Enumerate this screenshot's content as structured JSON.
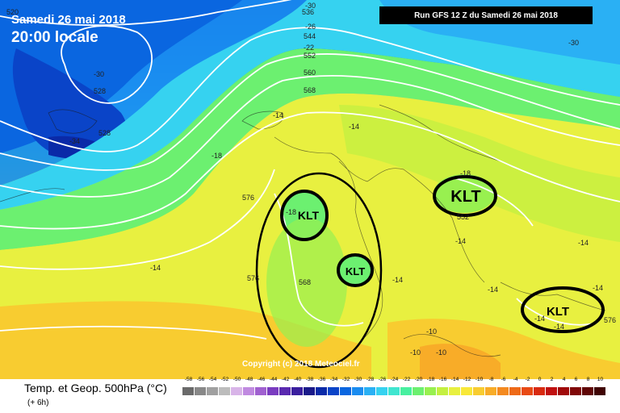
{
  "header": {
    "date": "Samedi 26 mai 2018",
    "local_time": "20:00 locale",
    "run_label": "Run GFS 12 Z du Samedi 26 mai 2018"
  },
  "footer": {
    "title": "Temp. et Geop. 500hPa (°C)",
    "step": "(+ 6h)"
  },
  "copyright": "Copyright (c) 2018 Meteociel.fr",
  "legend": {
    "values": [
      "-58",
      "-56",
      "-54",
      "-52",
      "-50",
      "-48",
      "-46",
      "-44",
      "-42",
      "-40",
      "-38",
      "-36",
      "-34",
      "-32",
      "-30",
      "-28",
      "-26",
      "-24",
      "-22",
      "-20",
      "-18",
      "-16",
      "-14",
      "-12",
      "-10",
      "-8",
      "-6",
      "-4",
      "-2",
      "0",
      "2",
      "4",
      "6",
      "8",
      "10"
    ],
    "colors": [
      "#6a6a6a",
      "#888888",
      "#a0a0a0",
      "#bcbcbc",
      "#d8b4e8",
      "#c08ae0",
      "#a060d0",
      "#7a3cc0",
      "#5a2ab0",
      "#3a1e9e",
      "#1a1a8a",
      "#0a2aa8",
      "#0a44c8",
      "#0a66e0",
      "#1a8cf0",
      "#2ab0f4",
      "#36d2f0",
      "#40e6d0",
      "#48f0a0",
      "#6cf070",
      "#98f050",
      "#c4f040",
      "#e8f040",
      "#f8e838",
      "#f8cc30",
      "#f8ac28",
      "#f48a20",
      "#ee6a18",
      "#e84a14",
      "#d82a10",
      "#c01010",
      "#a00a0a",
      "#800808",
      "#600606",
      "#400404"
    ]
  },
  "annotations": {
    "klt_labels": [
      "KLT",
      "KLT",
      "KLT",
      "KLT"
    ]
  },
  "isoline_labels": {
    "geopotential": [
      "520",
      "528",
      "528",
      "536",
      "544",
      "552",
      "560",
      "568",
      "576",
      "576",
      "576",
      "568",
      "552"
    ],
    "temperature": [
      "-30",
      "-26",
      "-22",
      "-30",
      "-34",
      "-30",
      "-18",
      "-14",
      "-14",
      "-14",
      "-18",
      "-14",
      "-14",
      "-14",
      "-14",
      "-14",
      "-14",
      "-10",
      "-10",
      "-10",
      "-14",
      "-18"
    ]
  }
}
